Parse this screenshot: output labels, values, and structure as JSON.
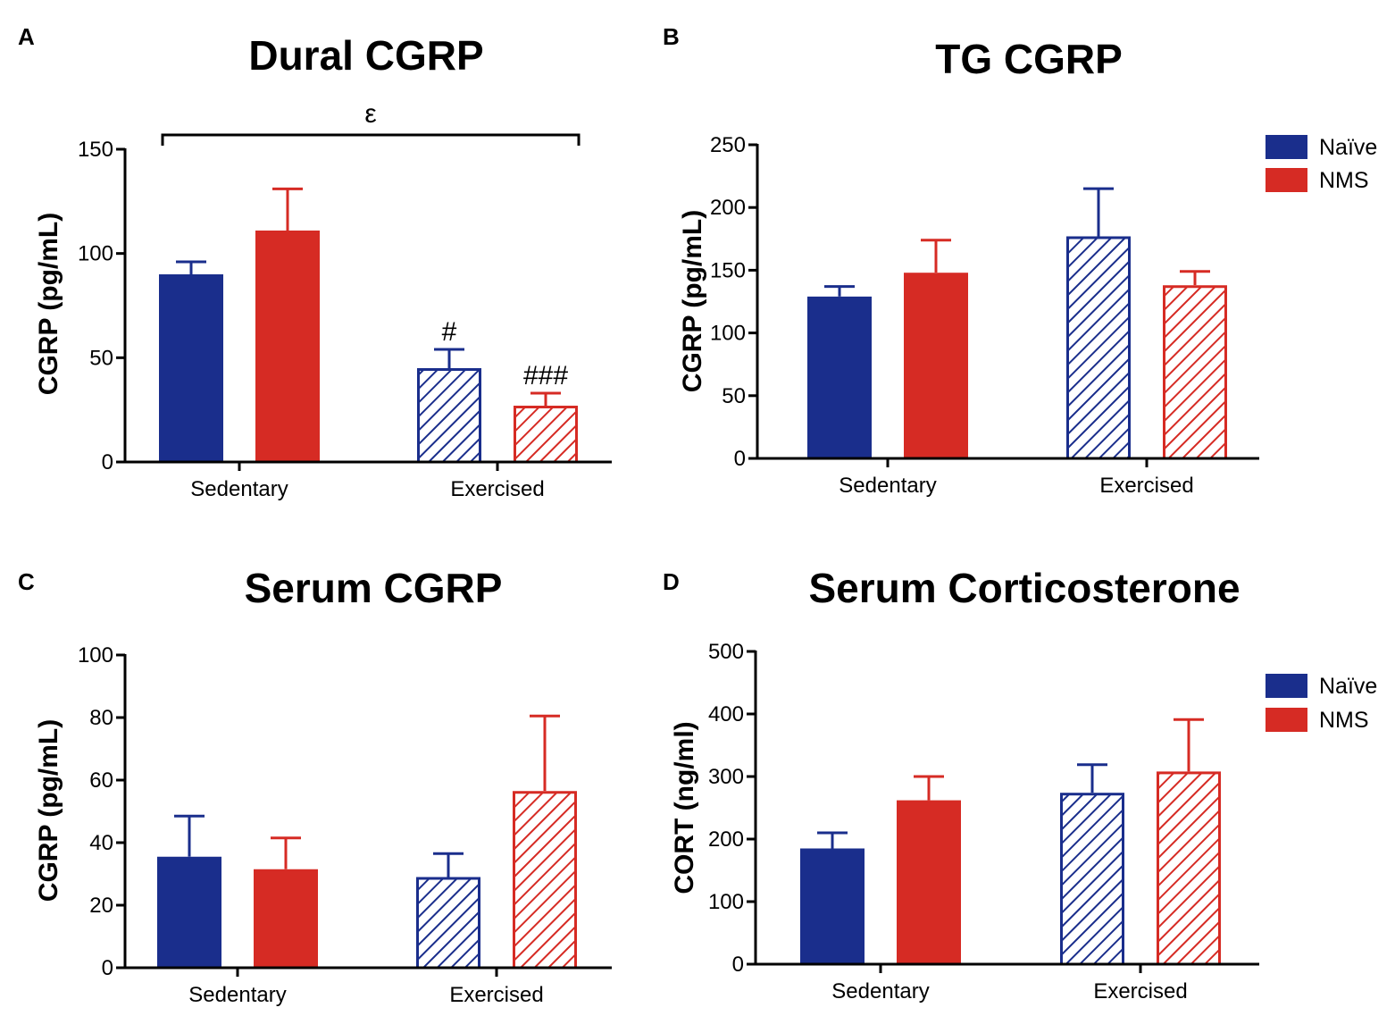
{
  "legend": [
    {
      "label": "Naïve",
      "color": "#1a2e8c"
    },
    {
      "label": "NMS",
      "color": "#d62b24"
    }
  ],
  "chart_data": [
    {
      "type": "bar",
      "panel": "A",
      "title": "Dural CGRP",
      "ylabel": "CGRP (pg/mL)",
      "ylim": [
        0,
        150
      ],
      "yticks": [
        0,
        50,
        100,
        150
      ],
      "categories": [
        "Sedentary",
        "Exercised"
      ],
      "series": [
        {
          "name": "Naïve",
          "color": "#1a2e8c",
          "values": [
            90,
            45
          ],
          "errors": [
            6,
            9
          ]
        },
        {
          "name": "NMS",
          "color": "#d62b24",
          "values": [
            111,
            27
          ],
          "errors": [
            20,
            6
          ]
        }
      ],
      "pattern": [
        "solid",
        "hatched"
      ],
      "bar_annotations": [
        {
          "category": 1,
          "series": 0,
          "text": "#"
        },
        {
          "category": 1,
          "series": 1,
          "text": "###"
        }
      ],
      "bracket": {
        "text": "ε",
        "from": 0,
        "to": 1
      },
      "legend": false
    },
    {
      "type": "bar",
      "panel": "B",
      "title": "TG CGRP",
      "ylabel": "CGRP (pg/mL)",
      "ylim": [
        0,
        250
      ],
      "yticks": [
        0,
        50,
        100,
        150,
        200,
        250
      ],
      "categories": [
        "Sedentary",
        "Exercised"
      ],
      "series": [
        {
          "name": "Naïve",
          "color": "#1a2e8c",
          "values": [
            129,
            177
          ],
          "errors": [
            8,
            38
          ]
        },
        {
          "name": "NMS",
          "color": "#d62b24",
          "values": [
            148,
            138
          ],
          "errors": [
            26,
            11
          ]
        }
      ],
      "pattern": [
        "solid",
        "hatched"
      ],
      "bar_annotations": [],
      "legend": true
    },
    {
      "type": "bar",
      "panel": "C",
      "title": "Serum CGRP",
      "ylabel": "CGRP (pg/mL)",
      "ylim": [
        0,
        100
      ],
      "yticks": [
        0,
        20,
        40,
        60,
        80,
        100
      ],
      "categories": [
        "Sedentary",
        "Exercised"
      ],
      "series": [
        {
          "name": "Naïve",
          "color": "#1a2e8c",
          "values": [
            35.5,
            29
          ],
          "errors": [
            13,
            7.5
          ]
        },
        {
          "name": "NMS",
          "color": "#d62b24",
          "values": [
            31.5,
            56.5
          ],
          "errors": [
            10,
            24
          ]
        }
      ],
      "pattern": [
        "solid",
        "hatched"
      ],
      "bar_annotations": [],
      "legend": false
    },
    {
      "type": "bar",
      "panel": "D",
      "title": "Serum Corticosterone",
      "ylabel": "CORT (ng/ml)",
      "ylim": [
        0,
        500
      ],
      "yticks": [
        0,
        100,
        200,
        300,
        400,
        500
      ],
      "categories": [
        "Sedentary",
        "Exercised"
      ],
      "series": [
        {
          "name": "Naïve",
          "color": "#1a2e8c",
          "values": [
            185,
            274
          ],
          "errors": [
            25,
            45
          ]
        },
        {
          "name": "NMS",
          "color": "#d62b24",
          "values": [
            262,
            308
          ],
          "errors": [
            38,
            83
          ]
        }
      ],
      "pattern": [
        "solid",
        "hatched"
      ],
      "bar_annotations": [],
      "legend": true
    }
  ]
}
